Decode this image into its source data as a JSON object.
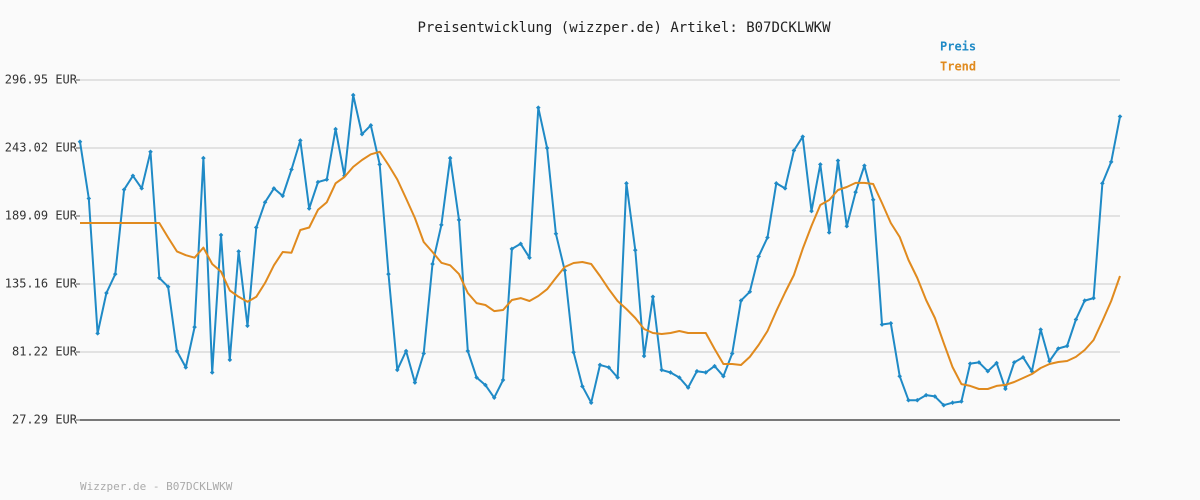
{
  "chart_data": {
    "type": "line",
    "title": "Preisentwicklung (wizzper.de) Artikel: B07DCKLWKW",
    "footer": "Wizzper.de - B07DCKLWKW",
    "ylim": [
      27.29,
      296.95
    ],
    "yticks": [
      {
        "value": 27.29,
        "label": "27.29 EUR"
      },
      {
        "value": 81.22,
        "label": "81.22 EUR"
      },
      {
        "value": 135.16,
        "label": "135.16 EUR"
      },
      {
        "value": 189.09,
        "label": "189.09 EUR"
      },
      {
        "value": 243.02,
        "label": "243.02 EUR"
      },
      {
        "value": 296.95,
        "label": "296.95 EUR"
      }
    ],
    "grid": true,
    "legend": "top-right",
    "series": [
      {
        "name": "Preis",
        "color": "#1f8ac6",
        "markers": true,
        "values": [
          248,
          203,
          96,
          128,
          143,
          210,
          221,
          211,
          240,
          140,
          133,
          82,
          69,
          101,
          235,
          65,
          174,
          75,
          161,
          102,
          180,
          200,
          211,
          205,
          226,
          249,
          195,
          216,
          218,
          258,
          221,
          285,
          254,
          261,
          230,
          143,
          67,
          82,
          57,
          80,
          151,
          182,
          235,
          186,
          82,
          61,
          55,
          45,
          59,
          163,
          167,
          156,
          275,
          243,
          175,
          146,
          81,
          54,
          41,
          71,
          69,
          61,
          215,
          162,
          78,
          125,
          67,
          65,
          61,
          53,
          66,
          65,
          70,
          62,
          80,
          122,
          129,
          157,
          172,
          215,
          211,
          241,
          252,
          193,
          230,
          176,
          233,
          181,
          208,
          229,
          202,
          103,
          104,
          62,
          43,
          43,
          47,
          46,
          39,
          41,
          42,
          72,
          73,
          66,
          72.5,
          52,
          73,
          77,
          66,
          99,
          74,
          84,
          86,
          107,
          122,
          124,
          215,
          232,
          268
        ]
      },
      {
        "name": "Trend",
        "color": "#e08a1e",
        "markers": false,
        "values": [
          183.5,
          183.5,
          183.5,
          183.5,
          183.5,
          183.5,
          183.5,
          183.5,
          183.5,
          183.5,
          172,
          161,
          158,
          156,
          164,
          151,
          145,
          130,
          125,
          121,
          125,
          136,
          150,
          160.5,
          160,
          178,
          180,
          194,
          200,
          215,
          220,
          228,
          233.5,
          238,
          240,
          229.5,
          218,
          203,
          187.5,
          168.5,
          160.5,
          152,
          150,
          143,
          128,
          120,
          118.5,
          113.7,
          114.5,
          122.5,
          124,
          121.7,
          125.6,
          131,
          140,
          148.6,
          151.8,
          152.6,
          151,
          141.5,
          131,
          121.7,
          115.3,
          108.2,
          99.5,
          96.3,
          95.5,
          96.3,
          97.9,
          96.3,
          96.3,
          96.3,
          83.6,
          71.7,
          71.7,
          70.9,
          77.3,
          86.8,
          97.9,
          113.7,
          128.4,
          142.3,
          163,
          181.2,
          197.8,
          201.8,
          209.7,
          212.1,
          215.3,
          215.3,
          214.5,
          199.4,
          183.5,
          172.4,
          154.2,
          139.9,
          122.5,
          108.2,
          88.4,
          69.3,
          55.8,
          54.3,
          51.9,
          51.9,
          54.3,
          55.1,
          57.4,
          60.6,
          63.8,
          68.5,
          71.7,
          73.3,
          74.1,
          77.3,
          82.8,
          90.7,
          105.8,
          121.7,
          141.5
        ]
      }
    ]
  }
}
